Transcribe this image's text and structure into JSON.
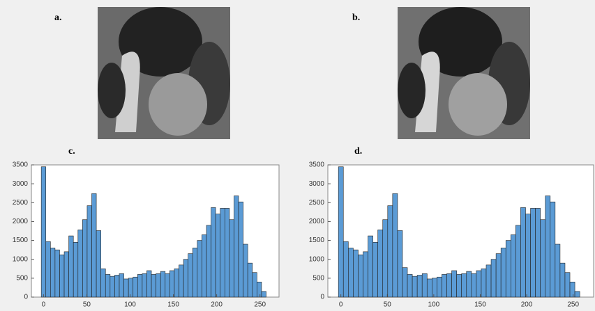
{
  "image_panels": [
    {
      "label": "a."
    },
    {
      "label": "b."
    }
  ],
  "chart_data": [
    {
      "type": "histogram",
      "title": "c.",
      "color": "#5b9bd5",
      "bins": [
        -2.6,
        2.7,
        8,
        13.3,
        18.6,
        23.9,
        29.2,
        34.5,
        39.8,
        45.1,
        50.4,
        55.7,
        61,
        66.3,
        71.6,
        76.9,
        82.2,
        87.5,
        92.8,
        98.1,
        103.4,
        108.7,
        114,
        119.3,
        124.6,
        129.9,
        135.2,
        140.5,
        145.8,
        151.1,
        156.4,
        161.7,
        167,
        172.3,
        177.6,
        182.9,
        188.2,
        193.5,
        198.8,
        204.1,
        209.4,
        214.7,
        220,
        225.3,
        230.6,
        235.9,
        241.2,
        246.5,
        251.8,
        257.1
      ],
      "values": [
        3450,
        1470,
        1300,
        1250,
        1120,
        1200,
        1620,
        1450,
        1780,
        2050,
        2420,
        2740,
        1760,
        750,
        600,
        550,
        580,
        620,
        480,
        500,
        530,
        600,
        620,
        700,
        600,
        620,
        680,
        620,
        700,
        750,
        850,
        1000,
        1150,
        1300,
        1500,
        1650,
        1900,
        2370,
        2200,
        2350,
        2350,
        2050,
        2680,
        2520,
        1400,
        900,
        650,
        400,
        150
      ],
      "xlim": [
        -14,
        272
      ],
      "ylim": [
        0,
        3500
      ],
      "xticks": [
        0,
        50,
        100,
        150,
        200,
        250
      ],
      "yticks": [
        0,
        500,
        1000,
        1500,
        2000,
        2500,
        3000,
        3500
      ]
    },
    {
      "type": "histogram",
      "title": "d.",
      "color": "#5b9bd5",
      "bins": [
        -2.6,
        2.7,
        8,
        13.3,
        18.6,
        23.9,
        29.2,
        34.5,
        39.8,
        45.1,
        50.4,
        55.7,
        61,
        66.3,
        71.6,
        76.9,
        82.2,
        87.5,
        92.8,
        98.1,
        103.4,
        108.7,
        114,
        119.3,
        124.6,
        129.9,
        135.2,
        140.5,
        145.8,
        151.1,
        156.4,
        161.7,
        167,
        172.3,
        177.6,
        182.9,
        188.2,
        193.5,
        198.8,
        204.1,
        209.4,
        214.7,
        220,
        225.3,
        230.6,
        235.9,
        241.2,
        246.5,
        251.8,
        257.1
      ],
      "values": [
        3450,
        1470,
        1300,
        1250,
        1120,
        1200,
        1620,
        1450,
        1780,
        2050,
        2420,
        2740,
        1760,
        780,
        600,
        550,
        580,
        620,
        480,
        500,
        530,
        600,
        620,
        700,
        600,
        620,
        680,
        620,
        700,
        750,
        850,
        1000,
        1150,
        1300,
        1500,
        1650,
        1900,
        2370,
        2200,
        2350,
        2350,
        2050,
        2680,
        2520,
        1400,
        900,
        650,
        400,
        150
      ],
      "xlim": [
        -14,
        272
      ],
      "ylim": [
        0,
        3500
      ],
      "xticks": [
        0,
        50,
        100,
        150,
        200,
        250
      ],
      "yticks": [
        0,
        500,
        1000,
        1500,
        2000,
        2500,
        3000,
        3500
      ]
    }
  ]
}
